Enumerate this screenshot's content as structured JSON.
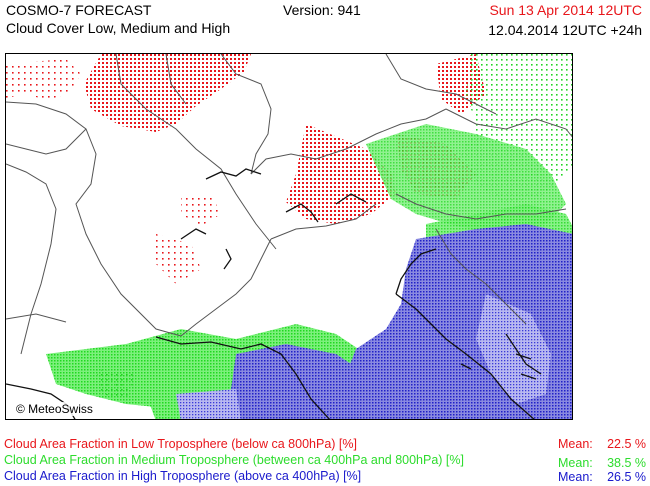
{
  "header": {
    "title_line1": "COSMO-7 FORECAST",
    "title_line2": "Cloud Cover Low, Medium and High",
    "version": "Version: 941",
    "valid_time": "Sun 13 Apr 2014 12UTC",
    "run_time": "12.04.2014 12UTC +24h"
  },
  "map": {
    "copyright": "© MeteoSwiss",
    "colors": {
      "low": "#e8161b",
      "medium": "#00dd00",
      "high": "#1a1aff"
    }
  },
  "legend": [
    {
      "label": "Cloud Area Fraction in Low Troposphere (below ca 800hPa) [%]",
      "mean_label": "Mean:",
      "mean_value": "22.5 %",
      "color": "#e8161b"
    },
    {
      "label": "Cloud Area Fraction in Medium Troposphere (between ca 400hPa and 800hPa) [%]",
      "mean_label": "Mean:",
      "mean_value": "38.5 %",
      "color": "#2ddc2d"
    },
    {
      "label": "Cloud Area Fraction in High Troposphere (above ca 400hPa) [%]",
      "mean_label": "Mean:",
      "mean_value": "26.5 %",
      "color": "#1a1acc"
    }
  ]
}
